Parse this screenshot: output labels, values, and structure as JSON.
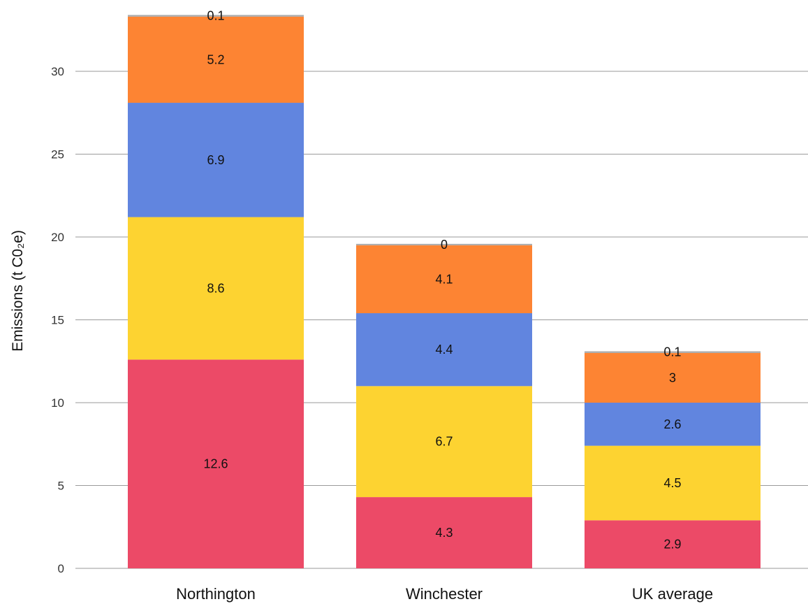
{
  "chart_data": {
    "type": "bar",
    "stacked": true,
    "categories": [
      "Northington",
      "Winchester",
      "UK average"
    ],
    "series": [
      {
        "color": "#EC4A67",
        "values": [
          12.6,
          4.3,
          2.9
        ]
      },
      {
        "color": "#FDD331",
        "values": [
          8.6,
          6.7,
          4.5
        ]
      },
      {
        "color": "#6185DF",
        "values": [
          6.9,
          4.4,
          2.6
        ]
      },
      {
        "color": "#FD8433",
        "values": [
          5.2,
          4.1,
          3
        ]
      },
      {
        "color": "#AAAAAA",
        "values": [
          0.1,
          0,
          0.1
        ]
      }
    ],
    "ylabel": "Emissions (t C0₂e)",
    "ylim": [
      0,
      33
    ],
    "yticks": [
      0,
      5,
      10,
      15,
      20,
      25,
      30
    ],
    "grid": true,
    "legend": "none"
  }
}
